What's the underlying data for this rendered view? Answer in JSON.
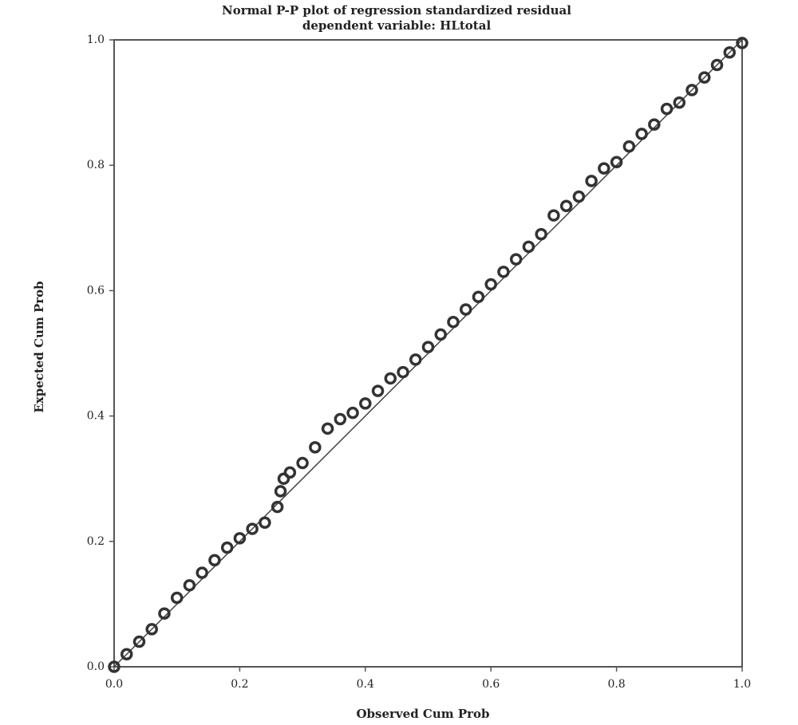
{
  "chart_data": {
    "type": "scatter",
    "title": "Normal P-P plot of regression standardized residual",
    "subtitle": "dependent variable: HLtotal",
    "x_label": "Observed Cum Prob",
    "y_label": "Expected Cum Prob",
    "x": [
      0.0,
      0.02,
      0.04,
      0.06,
      0.08,
      0.1,
      0.12,
      0.14,
      0.16,
      0.18,
      0.2,
      0.22,
      0.24,
      0.26,
      0.265,
      0.27,
      0.28,
      0.3,
      0.32,
      0.34,
      0.36,
      0.38,
      0.4,
      0.42,
      0.44,
      0.46,
      0.48,
      0.5,
      0.52,
      0.54,
      0.56,
      0.58,
      0.6,
      0.62,
      0.64,
      0.66,
      0.68,
      0.7,
      0.72,
      0.74,
      0.76,
      0.78,
      0.8,
      0.82,
      0.84,
      0.86,
      0.88,
      0.9,
      0.92,
      0.94,
      0.96,
      0.98,
      1.0
    ],
    "values": [
      0.0,
      0.02,
      0.04,
      0.06,
      0.085,
      0.11,
      0.13,
      0.15,
      0.17,
      0.19,
      0.205,
      0.22,
      0.23,
      0.255,
      0.28,
      0.3,
      0.31,
      0.325,
      0.35,
      0.38,
      0.395,
      0.405,
      0.42,
      0.44,
      0.46,
      0.47,
      0.49,
      0.51,
      0.53,
      0.55,
      0.57,
      0.59,
      0.61,
      0.63,
      0.65,
      0.67,
      0.69,
      0.72,
      0.735,
      0.75,
      0.775,
      0.795,
      0.805,
      0.83,
      0.85,
      0.865,
      0.89,
      0.9,
      0.92,
      0.94,
      0.96,
      0.98,
      0.995
    ],
    "color": "#333333",
    "reference_line": true,
    "xlim": [
      0,
      1
    ],
    "ylim": [
      0,
      1
    ],
    "xticks": [
      {
        "value": 0,
        "label": "0.0"
      },
      0.2,
      0.4,
      0.6,
      0.8,
      {
        "value": 1,
        "label": "1.0"
      }
    ],
    "yticks": [
      {
        "value": 0,
        "label": "0.0"
      },
      0.2,
      0.4,
      0.6,
      0.8,
      {
        "value": 1,
        "label": "1.0"
      }
    ]
  }
}
